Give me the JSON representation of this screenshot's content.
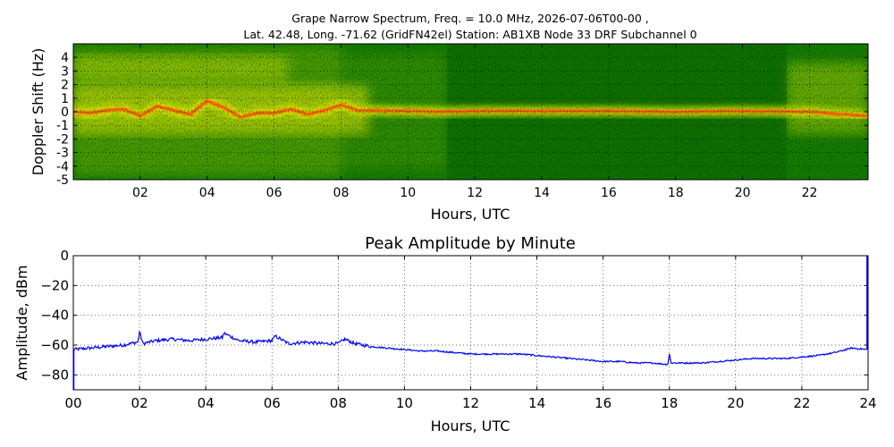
{
  "figure": {
    "title_line1": "Grape Narrow Spectrum, Freq. = 10.0 MHz, 2026-07-06T00-00 ,",
    "title_line2": "Lat.  42.48, Long. -71.62 (GridFN42el) Station: AB1XB Node 33 DRF Subchannel 0"
  },
  "chart_data": [
    {
      "type": "heatmap",
      "title": "",
      "xlabel": "Hours, UTC",
      "ylabel": "Doppler Shift (Hz)",
      "xlim": [
        0,
        23.75
      ],
      "ylim": [
        -5,
        5
      ],
      "x_ticks": [
        2,
        4,
        6,
        8,
        10,
        12,
        14,
        16,
        18,
        20,
        22
      ],
      "x_tick_labels": [
        "02",
        "04",
        "06",
        "08",
        "10",
        "12",
        "14",
        "16",
        "18",
        "20",
        "22"
      ],
      "y_ticks": [
        4,
        3,
        2,
        1,
        0,
        -1,
        -2,
        -3,
        -4,
        -5
      ],
      "y_tick_labels": [
        "4",
        "3",
        "2",
        "1",
        "0",
        "-1",
        "-2",
        "-3",
        "-4",
        "-5"
      ],
      "grid": true,
      "colormap": [
        "#006600",
        "#2e8b00",
        "#8fc400",
        "#e8e800",
        "#ffb000",
        "#ff3000"
      ],
      "signal_trace": {
        "hours": [
          0,
          0.5,
          1,
          1.5,
          2,
          2.5,
          3,
          3.5,
          4,
          4.5,
          5,
          5.5,
          6,
          6.5,
          7,
          7.5,
          8,
          8.5,
          9,
          10,
          11,
          12,
          14,
          16,
          18,
          20,
          22,
          23,
          23.75
        ],
        "doppler_hz": [
          0.0,
          -0.1,
          0.1,
          0.2,
          -0.3,
          0.4,
          0.1,
          -0.2,
          0.8,
          0.3,
          -0.4,
          -0.1,
          -0.1,
          0.2,
          -0.2,
          0.1,
          0.5,
          0.1,
          0.1,
          0.05,
          0.0,
          0.05,
          0.05,
          0.05,
          0.0,
          0.05,
          0.0,
          -0.2,
          -0.3
        ]
      }
    },
    {
      "type": "line",
      "title": "Peak Amplitude by Minute",
      "xlabel": "Hours, UTC",
      "ylabel": "Amplitude, dBm",
      "xlim": [
        0,
        24
      ],
      "ylim": [
        -90,
        0
      ],
      "x_ticks": [
        0,
        2,
        4,
        6,
        8,
        10,
        12,
        14,
        16,
        18,
        20,
        22,
        24
      ],
      "x_tick_labels": [
        "00",
        "02",
        "04",
        "06",
        "08",
        "10",
        "12",
        "14",
        "16",
        "18",
        "20",
        "22",
        "24"
      ],
      "y_ticks": [
        0,
        -20,
        -40,
        -60,
        -80
      ],
      "y_tick_labels": [
        "0",
        "−20",
        "−40",
        "−60",
        "−80"
      ],
      "grid": true,
      "series": [
        {
          "color": "#0000ff",
          "x": [
            0,
            0.5,
            1,
            1.5,
            1.95,
            2.0,
            2.1,
            2.5,
            3,
            3.5,
            4,
            4.5,
            4.55,
            5,
            5.5,
            6,
            6.1,
            6.5,
            7,
            7.5,
            8,
            8.2,
            8.5,
            9,
            9.5,
            10,
            10.5,
            11,
            11.5,
            12,
            12.5,
            13,
            13.5,
            14,
            14.5,
            15,
            15.5,
            16,
            16.5,
            17,
            17.5,
            17.95,
            18.0,
            18.05,
            18.5,
            19,
            19.5,
            20,
            20.5,
            21,
            21.5,
            22,
            22.5,
            23,
            23.5,
            23.97
          ],
          "y": [
            -63,
            -62,
            -61,
            -60,
            -58,
            -51,
            -59,
            -57,
            -56,
            -57,
            -56,
            -55,
            -52,
            -57,
            -58,
            -57,
            -54,
            -59,
            -58,
            -59,
            -59,
            -56,
            -59,
            -61,
            -62,
            -63,
            -64,
            -64,
            -65,
            -66,
            -66,
            -66,
            -66,
            -67,
            -68,
            -69,
            -70,
            -71,
            -71,
            -72,
            -72,
            -73,
            -66,
            -72,
            -72,
            -72,
            -71,
            -70,
            -69,
            -69,
            -69,
            -68,
            -67,
            -65,
            -62,
            -63
          ]
        }
      ]
    }
  ]
}
